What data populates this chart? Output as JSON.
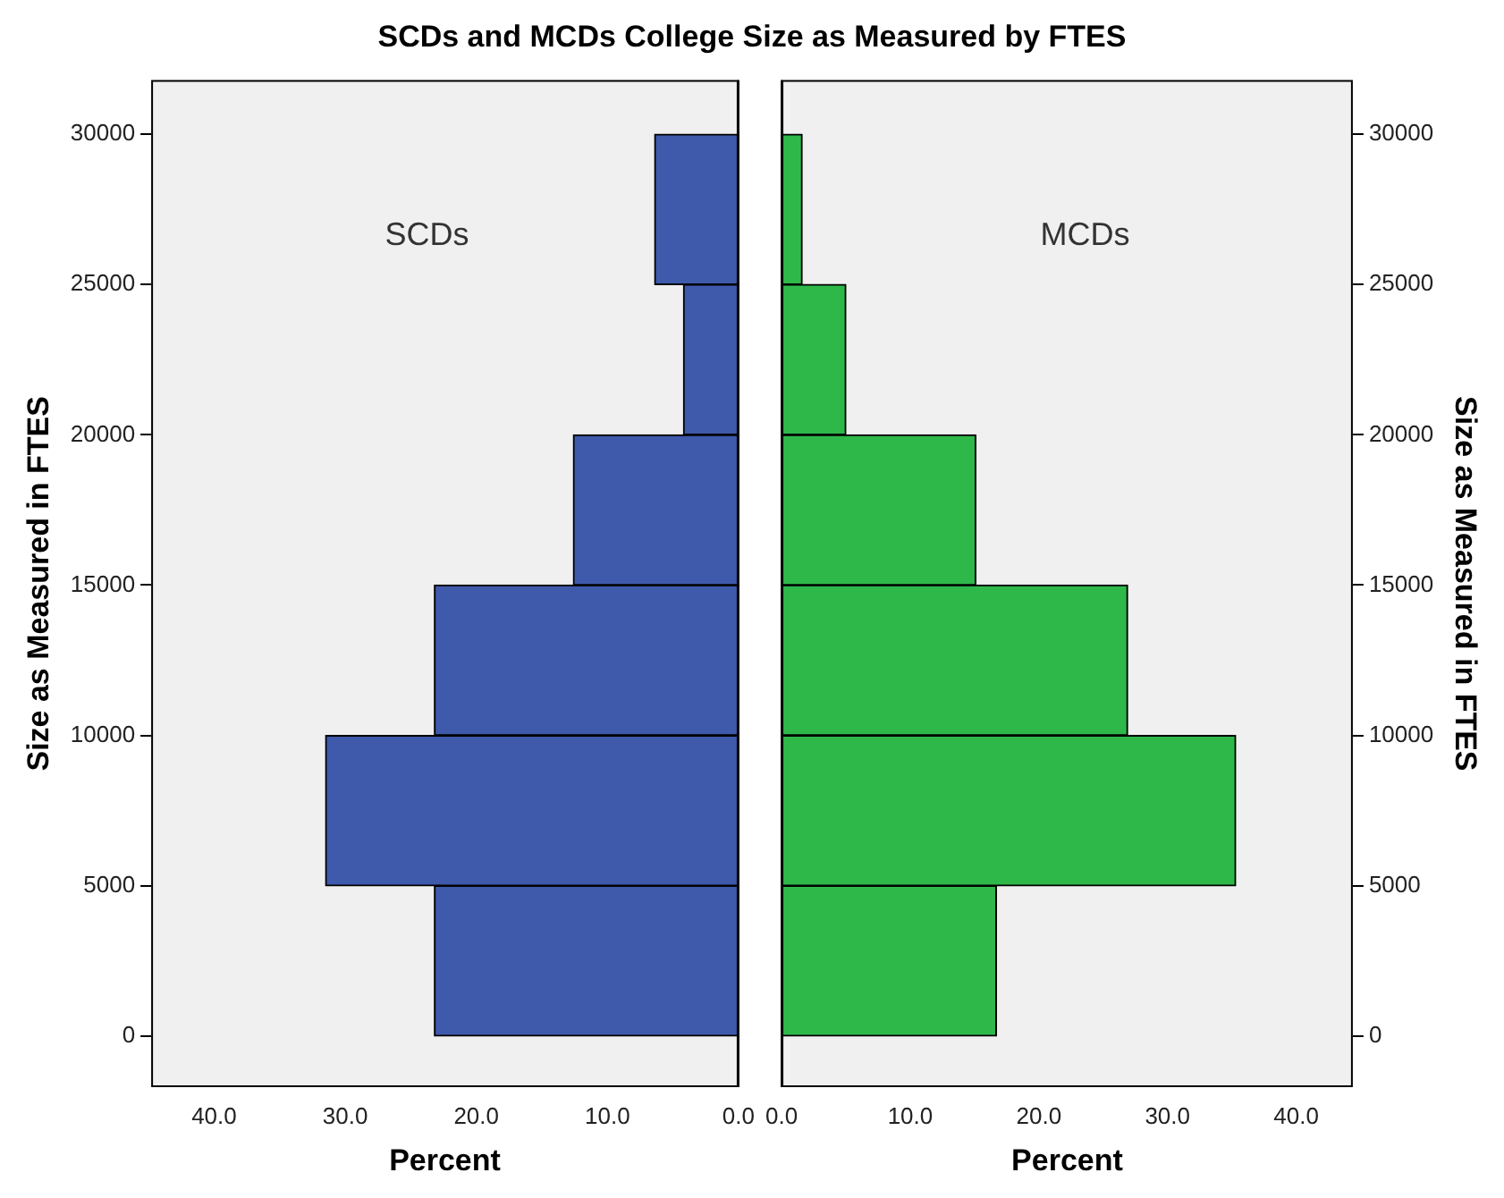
{
  "chart_data": [
    {
      "type": "histogram",
      "orientation": "horizontal",
      "title": "SCDs and MCDs College Size as Measured by FTES",
      "xlabel": "Percent",
      "ylabel": "Size as Measured in FTES",
      "bins": [
        0,
        5000,
        10000,
        15000,
        20000,
        25000,
        30000
      ],
      "series": [
        {
          "name": "SCDs",
          "color": "#3f59ab",
          "values": [
            23.2,
            31.5,
            23.2,
            12.6,
            4.2,
            6.4
          ]
        }
      ],
      "xlim": [
        44.8,
        0
      ],
      "xticks": [
        {
          "value": 40,
          "label": "40.0"
        },
        {
          "value": 30,
          "label": "30.0"
        },
        {
          "value": 20,
          "label": "20.0"
        },
        {
          "value": 10,
          "label": "10.0"
        },
        {
          "value": 0,
          "label": "0.0"
        }
      ],
      "ylim": [
        -1700,
        31800
      ],
      "yticks": [
        0,
        5000,
        10000,
        15000,
        20000,
        25000,
        30000
      ],
      "grid": false,
      "legend": false
    },
    {
      "type": "histogram",
      "orientation": "horizontal",
      "xlabel": "Percent",
      "ylabel": "Size as Measured in FTES",
      "bins": [
        0,
        5000,
        10000,
        15000,
        20000,
        25000,
        30000
      ],
      "series": [
        {
          "name": "MCDs",
          "color": "#2fb84a",
          "values": [
            16.7,
            35.3,
            26.9,
            15.1,
            5.0,
            1.6
          ]
        }
      ],
      "xlim": [
        0,
        44.4
      ],
      "xticks": [
        {
          "value": 0,
          "label": "0.0"
        },
        {
          "value": 10,
          "label": "10.0"
        },
        {
          "value": 20,
          "label": "20.0"
        },
        {
          "value": 30,
          "label": "30.0"
        },
        {
          "value": 40,
          "label": "40.0"
        }
      ],
      "ylim": [
        -1700,
        31800
      ],
      "yticks": [
        0,
        5000,
        10000,
        15000,
        20000,
        25000,
        30000
      ],
      "grid": false,
      "legend": false
    }
  ]
}
